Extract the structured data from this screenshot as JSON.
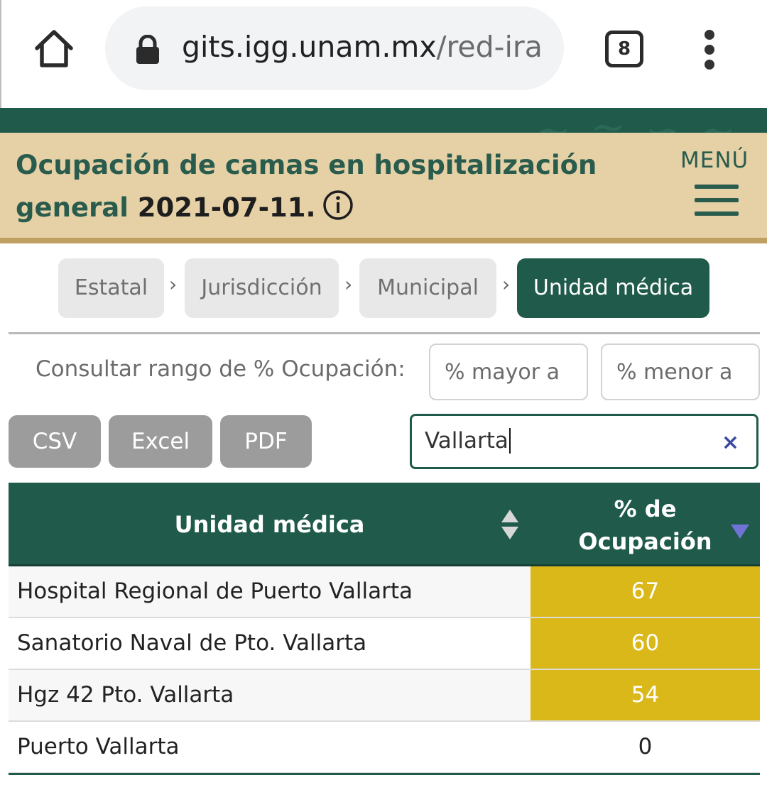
{
  "browser": {
    "url_host": "gits.igg.unam.mx",
    "url_path": "/red-ira",
    "tab_count": "8"
  },
  "header": {
    "title_prefix": "Ocupación de camas en hospitalización general ",
    "title_date": "2021-07-11.",
    "menu_label": "MENÚ"
  },
  "breadcrumb": {
    "items": [
      {
        "label": "Estatal",
        "active": false
      },
      {
        "label": "Jurisdicción",
        "active": false
      },
      {
        "label": "Municipal",
        "active": false
      },
      {
        "label": "Unidad médica",
        "active": true
      }
    ],
    "separator": "›"
  },
  "filters": {
    "range_label": "Consultar rango de % Ocupación:",
    "min_placeholder": "% mayor a",
    "max_placeholder": "% menor a"
  },
  "export": {
    "csv_label": "CSV",
    "excel_label": "Excel",
    "pdf_label": "PDF"
  },
  "search": {
    "value": "Vallarta",
    "clear_symbol": "×"
  },
  "table": {
    "col_name": "Unidad médica",
    "col_pct_line1": "% de",
    "col_pct_line2": "Ocupación",
    "rows": [
      {
        "name": "Hospital Regional de Puerto Vallarta",
        "pct": "67"
      },
      {
        "name": "Sanatorio Naval de Pto. Vallarta",
        "pct": "60"
      },
      {
        "name": "Hgz 42 Pto. Vallarta",
        "pct": "54"
      },
      {
        "name": "Puerto Vallarta",
        "pct": "0"
      }
    ]
  },
  "colors": {
    "brand_green": "#1f5a4a",
    "header_beige": "#e6d1a6",
    "occupancy_yellow": "#dab81a"
  }
}
